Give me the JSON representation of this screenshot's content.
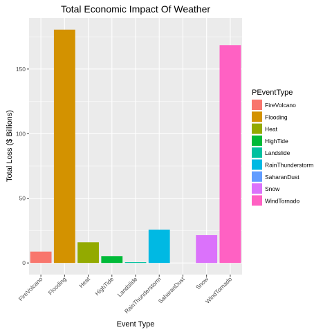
{
  "chart_data": {
    "type": "bar",
    "title": "Total Economic Impact Of Weather",
    "xlabel": "Event Type",
    "ylabel": "Total Loss ($ Billions)",
    "categories": [
      "FireVolcano",
      "Flooding",
      "Heat",
      "HighTide",
      "Landslide",
      "RainThunderstorm",
      "SaharanDust",
      "Snow",
      "WindTornado"
    ],
    "values": [
      8.8,
      180.5,
      16.0,
      5.3,
      0.6,
      25.8,
      0.0,
      21.5,
      168.5
    ],
    "colors": [
      "#F8766D",
      "#D39200",
      "#93AA00",
      "#00BA38",
      "#00C19F",
      "#00B9E3",
      "#619CFF",
      "#DB72FB",
      "#FF61C3"
    ],
    "ylim": [
      -9.0,
      189.5
    ],
    "yticks": [
      0,
      50,
      100,
      150
    ],
    "grid": true,
    "panel_background": "#EBEBEB",
    "legend": {
      "title": "PEventType",
      "position": "right",
      "entries": [
        "FireVolcano",
        "Flooding",
        "Heat",
        "HighTide",
        "Landslide",
        "RainThunderstorm",
        "SaharanDust",
        "Snow",
        "WindTornado"
      ]
    }
  }
}
